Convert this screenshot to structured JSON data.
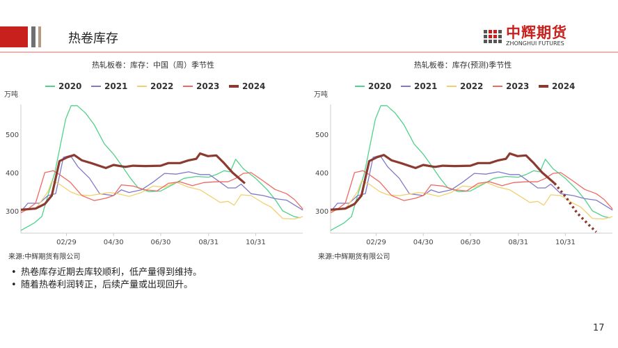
{
  "header": {
    "title": "热卷库存",
    "logo_cn": "中辉期货",
    "logo_en": "ZHONGHUI FUTURES",
    "brand_color": "#c8201c"
  },
  "charts_meta": [
    {
      "title": "热轧板卷：库存：中国（周）季节性",
      "source": "来源:中辉期货有限公司"
    },
    {
      "title": "热轧板卷：库存(预测)季节性",
      "source": "来源:中辉期货有限公司"
    }
  ],
  "bullets": [
    "热卷库存近期去库较顺利，低产量得到维持。",
    "随着热卷利润转正，后续产量或出现回升。"
  ],
  "page_number": "17",
  "chart_data": [
    {
      "type": "line",
      "title": "热轧板卷：库存：中国（周）季节性",
      "ylabel": "万吨",
      "ylim": [
        240,
        580
      ],
      "yticks": [
        300,
        400,
        500
      ],
      "xticks": [
        "02/29",
        "04/30",
        "06/30",
        "08/31",
        "10/31"
      ],
      "grid": false,
      "legend": "top",
      "series": [
        {
          "name": "2020",
          "color": "#4fd28a",
          "width": 1.3,
          "points": [
            [
              "01/01",
              249
            ],
            [
              "01/18",
              268
            ],
            [
              "01/28",
              285
            ],
            [
              "02/05",
              340
            ],
            [
              "02/14",
              400
            ],
            [
              "02/22",
              480
            ],
            [
              "02/28",
              540
            ],
            [
              "03/06",
              575
            ],
            [
              "03/14",
              575
            ],
            [
              "03/25",
              555
            ],
            [
              "04/05",
              525
            ],
            [
              "04/18",
              475
            ],
            [
              "04/30",
              448
            ],
            [
              "05/10",
              420
            ],
            [
              "05/22",
              385
            ],
            [
              "06/01",
              360
            ],
            [
              "06/15",
              350
            ],
            [
              "06/30",
              352
            ],
            [
              "07/15",
              368
            ],
            [
              "07/30",
              385
            ],
            [
              "08/15",
              390
            ],
            [
              "08/31",
              388
            ],
            [
              "09/10",
              395
            ],
            [
              "09/20",
              405
            ],
            [
              "09/28",
              402
            ],
            [
              "10/05",
              435
            ],
            [
              "10/15",
              410
            ],
            [
              "10/31",
              385
            ],
            [
              "11/15",
              355
            ],
            [
              "11/25",
              330
            ],
            [
              "12/05",
              300
            ],
            [
              "12/20",
              285
            ],
            [
              "12/28",
              282
            ]
          ]
        },
        {
          "name": "2021",
          "color": "#8078c8",
          "width": 1.3,
          "points": [
            [
              "01/01",
              298
            ],
            [
              "01/10",
              320
            ],
            [
              "01/25",
              320
            ],
            [
              "02/05",
              340
            ],
            [
              "02/15",
              345
            ],
            [
              "02/25",
              440
            ],
            [
              "03/05",
              445
            ],
            [
              "03/15",
              415
            ],
            [
              "03/30",
              385
            ],
            [
              "04/12",
              345
            ],
            [
              "04/30",
              340
            ],
            [
              "05/10",
              355
            ],
            [
              "05/20",
              348
            ],
            [
              "06/05",
              355
            ],
            [
              "06/20",
              375
            ],
            [
              "07/05",
              398
            ],
            [
              "07/20",
              396
            ],
            [
              "08/05",
              402
            ],
            [
              "08/20",
              395
            ],
            [
              "09/01",
              395
            ],
            [
              "09/15",
              375
            ],
            [
              "09/25",
              360
            ],
            [
              "10/05",
              360
            ],
            [
              "10/12",
              370
            ],
            [
              "10/25",
              345
            ],
            [
              "11/10",
              340
            ],
            [
              "11/25",
              332
            ],
            [
              "12/10",
              328
            ],
            [
              "12/31",
              302
            ]
          ]
        },
        {
          "name": "2022",
          "color": "#f2d070",
          "width": 1.3,
          "points": [
            [
              "01/01",
              300
            ],
            [
              "01/20",
              305
            ],
            [
              "02/05",
              350
            ],
            [
              "02/10",
              378
            ],
            [
              "02/20",
              370
            ],
            [
              "03/05",
              350
            ],
            [
              "03/15",
              342
            ],
            [
              "03/30",
              340
            ],
            [
              "04/15",
              345
            ],
            [
              "04/25",
              348
            ],
            [
              "05/05",
              345
            ],
            [
              "05/20",
              338
            ],
            [
              "06/05",
              348
            ],
            [
              "06/20",
              365
            ],
            [
              "07/05",
              362
            ],
            [
              "07/20",
              375
            ],
            [
              "08/05",
              362
            ],
            [
              "08/20",
              355
            ],
            [
              "09/05",
              335
            ],
            [
              "09/15",
              322
            ],
            [
              "09/25",
              325
            ],
            [
              "10/03",
              315
            ],
            [
              "10/12",
              342
            ],
            [
              "10/25",
              340
            ],
            [
              "11/10",
              320
            ],
            [
              "11/20",
              310
            ],
            [
              "12/05",
              280
            ],
            [
              "12/20",
              279
            ],
            [
              "12/31",
              285
            ]
          ]
        },
        {
          "name": "2023",
          "color": "#ee6a60",
          "width": 1.3,
          "points": [
            [
              "01/01",
              295
            ],
            [
              "01/10",
              305
            ],
            [
              "01/20",
              320
            ],
            [
              "02/01",
              400
            ],
            [
              "02/12",
              405
            ],
            [
              "02/20",
              395
            ],
            [
              "03/05",
              375
            ],
            [
              "03/20",
              340
            ],
            [
              "04/05",
              327
            ],
            [
              "04/20",
              333
            ],
            [
              "04/30",
              340
            ],
            [
              "05/10",
              368
            ],
            [
              "05/25",
              365
            ],
            [
              "06/10",
              355
            ],
            [
              "06/25",
              352
            ],
            [
              "07/10",
              372
            ],
            [
              "07/25",
              376
            ],
            [
              "08/10",
              366
            ],
            [
              "08/25",
              374
            ],
            [
              "09/10",
              376
            ],
            [
              "09/25",
              376
            ],
            [
              "10/05",
              385
            ],
            [
              "10/15",
              398
            ],
            [
              "10/25",
              400
            ],
            [
              "11/10",
              378
            ],
            [
              "11/25",
              356
            ],
            [
              "12/10",
              345
            ],
            [
              "12/20",
              330
            ],
            [
              "12/31",
              305
            ]
          ]
        },
        {
          "name": "2024",
          "color": "#8b3a30",
          "width": 3.2,
          "points": [
            [
              "01/01",
              303
            ],
            [
              "01/20",
              306
            ],
            [
              "02/01",
              318
            ],
            [
              "02/10",
              340
            ],
            [
              "02/20",
              430
            ],
            [
              "03/01",
              440
            ],
            [
              "03/10",
              446
            ],
            [
              "03/20",
              432
            ],
            [
              "04/01",
              425
            ],
            [
              "04/20",
              412
            ],
            [
              "04/30",
              420
            ],
            [
              "05/15",
              415
            ],
            [
              "05/25",
              418
            ],
            [
              "06/10",
              417
            ],
            [
              "06/30",
              418
            ],
            [
              "07/10",
              425
            ],
            [
              "07/25",
              425
            ],
            [
              "08/05",
              432
            ],
            [
              "08/15",
              436
            ],
            [
              "08/20",
              450
            ],
            [
              "08/30",
              443
            ],
            [
              "09/10",
              445
            ],
            [
              "09/20",
              425
            ],
            [
              "10/01",
              400
            ],
            [
              "10/17",
              372
            ]
          ]
        }
      ]
    },
    {
      "type": "line",
      "title": "热轧板卷：库存(预测)季节性",
      "ylabel": "万吨",
      "ylim": [
        240,
        580
      ],
      "yticks": [
        300,
        400,
        500
      ],
      "xticks": [
        "02/29",
        "04/30",
        "06/30",
        "08/31",
        "10/31"
      ],
      "grid": false,
      "legend": "top",
      "same_series_as_chart": 0,
      "forecast": {
        "name": "2024",
        "color": "#8b3a30",
        "style": "dotted",
        "points": [
          [
            "10/17",
            372
          ],
          [
            "11/01",
            335
          ],
          [
            "11/15",
            295
          ],
          [
            "12/01",
            262
          ],
          [
            "12/10",
            245
          ]
        ]
      }
    }
  ]
}
